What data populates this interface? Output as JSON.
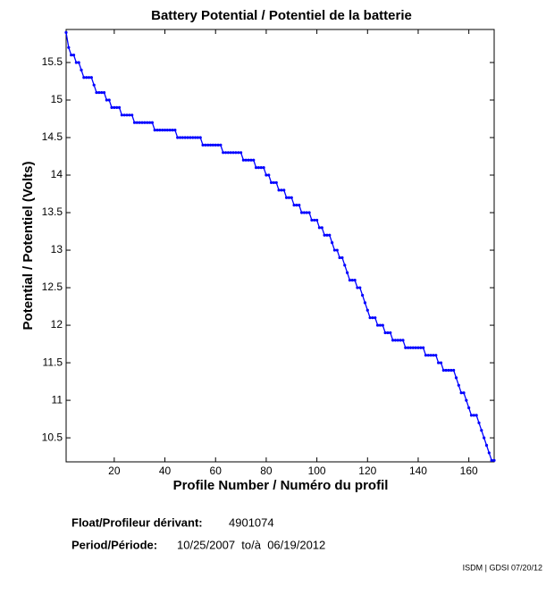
{
  "chart_data": {
    "type": "line",
    "title": "Battery Potential / Potentiel de la batterie",
    "xlabel": "Profile Number / Numéro du profil",
    "ylabel": "Potential / Potentiel (Volts)",
    "color": "#0000ff",
    "xlim": [
      1,
      170
    ],
    "ylim": [
      10.18,
      15.94
    ],
    "xticks": [
      20,
      40,
      60,
      80,
      100,
      120,
      140,
      160
    ],
    "yticks": [
      10.5,
      11,
      11.5,
      12,
      12.5,
      13,
      13.5,
      14,
      14.5,
      15,
      15.5
    ],
    "x": [
      1,
      2,
      3,
      4,
      5,
      6,
      7,
      8,
      9,
      10,
      11,
      12,
      13,
      14,
      15,
      16,
      17,
      18,
      19,
      20,
      21,
      22,
      23,
      24,
      25,
      26,
      27,
      28,
      29,
      30,
      31,
      32,
      33,
      34,
      35,
      36,
      37,
      38,
      39,
      40,
      41,
      42,
      43,
      44,
      45,
      46,
      47,
      48,
      49,
      50,
      51,
      52,
      53,
      54,
      55,
      56,
      57,
      58,
      59,
      60,
      61,
      62,
      63,
      64,
      65,
      66,
      67,
      68,
      69,
      70,
      71,
      72,
      73,
      74,
      75,
      76,
      77,
      78,
      79,
      80,
      81,
      82,
      83,
      84,
      85,
      86,
      87,
      88,
      89,
      90,
      91,
      92,
      93,
      94,
      95,
      96,
      97,
      98,
      99,
      100,
      101,
      102,
      103,
      104,
      105,
      106,
      107,
      108,
      109,
      110,
      111,
      112,
      113,
      114,
      115,
      116,
      117,
      118,
      119,
      120,
      121,
      122,
      123,
      124,
      125,
      126,
      127,
      128,
      129,
      130,
      131,
      132,
      133,
      134,
      135,
      136,
      137,
      138,
      139,
      140,
      141,
      142,
      143,
      144,
      145,
      146,
      147,
      148,
      149,
      150,
      151,
      152,
      153,
      154,
      155,
      156,
      157,
      158,
      159,
      160,
      161,
      162,
      163,
      164,
      165,
      166,
      167,
      168,
      169,
      170
    ],
    "values": [
      15.9,
      15.7,
      15.6,
      15.6,
      15.5,
      15.5,
      15.4,
      15.3,
      15.3,
      15.3,
      15.3,
      15.2,
      15.1,
      15.1,
      15.1,
      15.1,
      15.0,
      15.0,
      14.9,
      14.9,
      14.9,
      14.9,
      14.8,
      14.8,
      14.8,
      14.8,
      14.8,
      14.7,
      14.7,
      14.7,
      14.7,
      14.7,
      14.7,
      14.7,
      14.7,
      14.6,
      14.6,
      14.6,
      14.6,
      14.6,
      14.6,
      14.6,
      14.6,
      14.6,
      14.5,
      14.5,
      14.5,
      14.5,
      14.5,
      14.5,
      14.5,
      14.5,
      14.5,
      14.5,
      14.4,
      14.4,
      14.4,
      14.4,
      14.4,
      14.4,
      14.4,
      14.4,
      14.3,
      14.3,
      14.3,
      14.3,
      14.3,
      14.3,
      14.3,
      14.3,
      14.2,
      14.2,
      14.2,
      14.2,
      14.2,
      14.1,
      14.1,
      14.1,
      14.1,
      14.0,
      14.0,
      13.9,
      13.9,
      13.9,
      13.8,
      13.8,
      13.8,
      13.7,
      13.7,
      13.7,
      13.6,
      13.6,
      13.6,
      13.5,
      13.5,
      13.5,
      13.5,
      13.4,
      13.4,
      13.4,
      13.3,
      13.3,
      13.2,
      13.2,
      13.2,
      13.1,
      13.0,
      13.0,
      12.9,
      12.9,
      12.8,
      12.7,
      12.6,
      12.6,
      12.6,
      12.5,
      12.5,
      12.4,
      12.3,
      12.2,
      12.1,
      12.1,
      12.1,
      12.0,
      12.0,
      12.0,
      11.9,
      11.9,
      11.9,
      11.8,
      11.8,
      11.8,
      11.8,
      11.8,
      11.7,
      11.7,
      11.7,
      11.7,
      11.7,
      11.7,
      11.7,
      11.7,
      11.6,
      11.6,
      11.6,
      11.6,
      11.6,
      11.5,
      11.5,
      11.4,
      11.4,
      11.4,
      11.4,
      11.4,
      11.3,
      11.2,
      11.1,
      11.1,
      11.0,
      10.9,
      10.8,
      10.8,
      10.8,
      10.7,
      10.6,
      10.5,
      10.4,
      10.3,
      10.2,
      10.2
    ]
  },
  "float_label": "Float/Profileur dérivant:",
  "float_id": "4901074",
  "period_label": "Period/Période:",
  "period_text": "10/25/2007  to/à  06/19/2012",
  "credit": "ISDM | GDSI 07/20/12"
}
